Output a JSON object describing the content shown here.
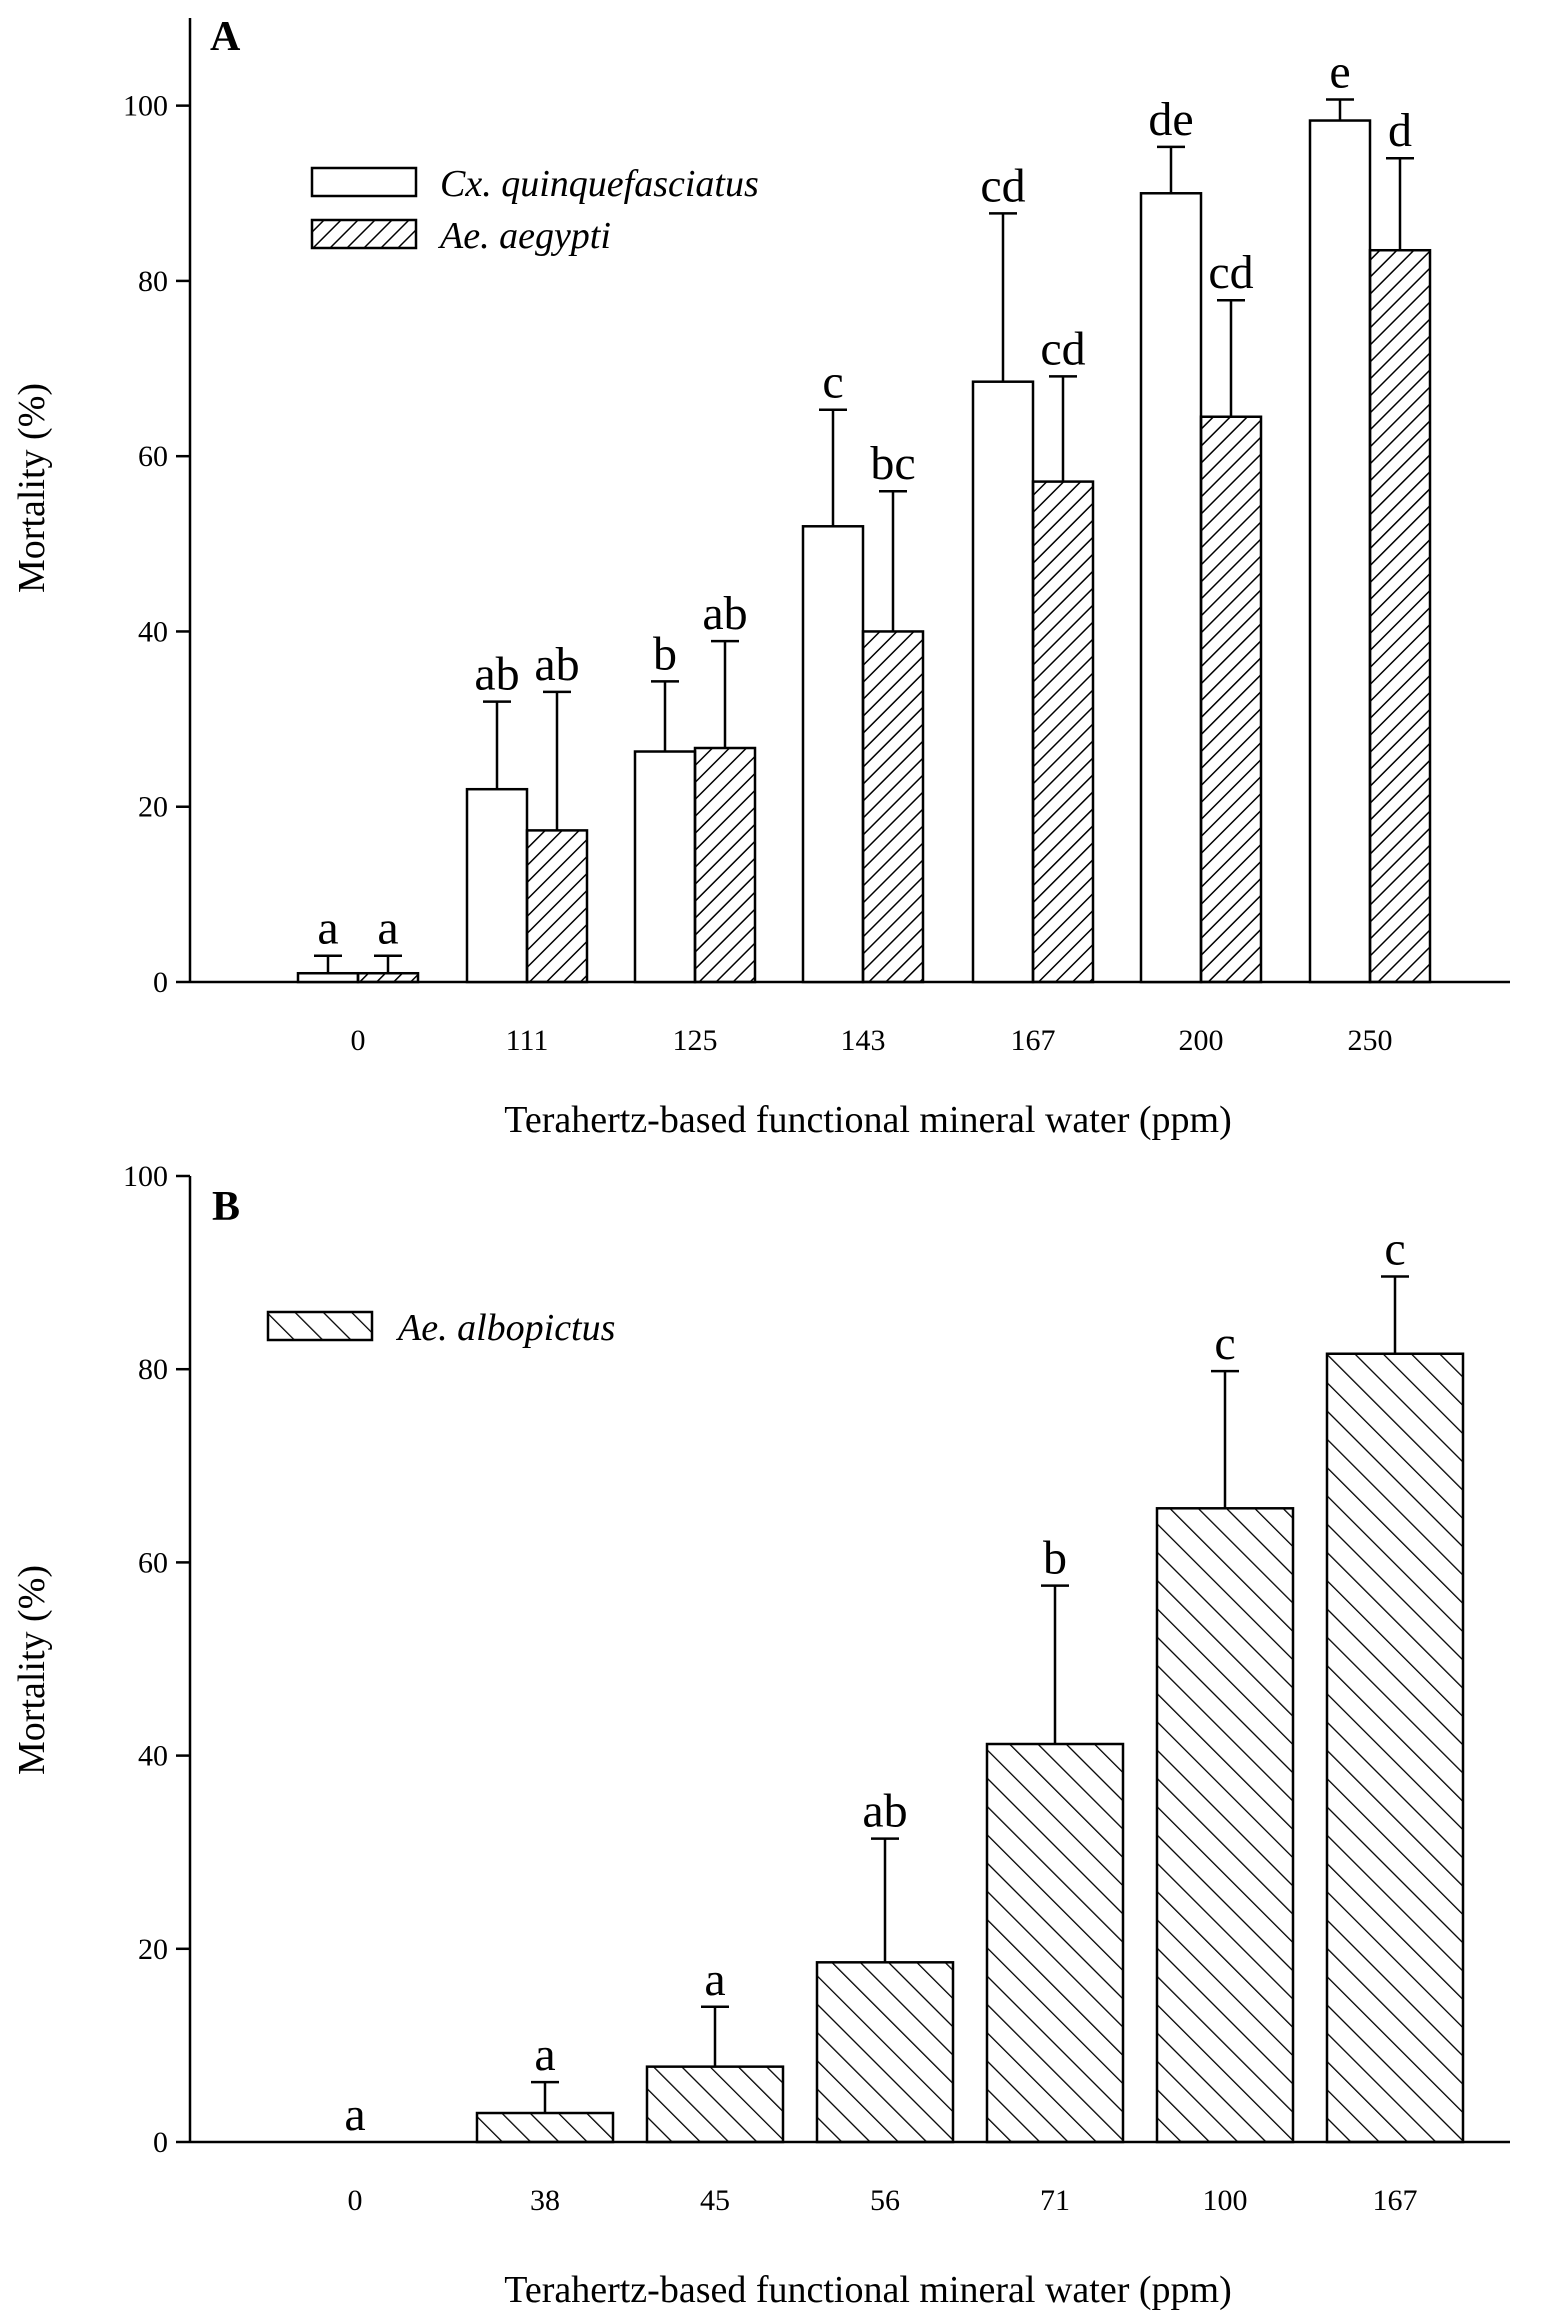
{
  "chart_data": [
    {
      "panel": "A",
      "type": "bar",
      "xlabel": "Terahertz-based functional mineral water (ppm)",
      "ylabel": "Mortality (%)",
      "ylim": [
        0,
        110
      ],
      "yticks": [
        0,
        20,
        40,
        60,
        80,
        100
      ],
      "categories": [
        "0",
        "111",
        "125",
        "143",
        "167",
        "200",
        "250"
      ],
      "legend_position": "top-left",
      "series": [
        {
          "name": "Cx. quinquefasciatus",
          "pattern": "open",
          "values": [
            1,
            22,
            26.3,
            52,
            68.5,
            90,
            98.3
          ],
          "errors": [
            2,
            10,
            8,
            13.3,
            19.2,
            5.3,
            2.4
          ],
          "labels": [
            "a",
            "ab",
            "b",
            "c",
            "cd",
            "de",
            "e"
          ]
        },
        {
          "name": "Ae. aegypti",
          "pattern": "hatch-forward",
          "values": [
            1,
            17.3,
            26.7,
            40,
            57.1,
            64.5,
            83.5
          ],
          "errors": [
            2,
            15.8,
            12.2,
            16,
            12,
            13.3,
            10.5
          ],
          "labels": [
            "a",
            "ab",
            "ab",
            "bc",
            "cd",
            "cd",
            "d"
          ]
        }
      ]
    },
    {
      "panel": "B",
      "type": "bar",
      "xlabel": "Terahertz-based functional mineral water (ppm)",
      "ylabel": "Mortality (%)",
      "ylim": [
        0,
        100
      ],
      "yticks": [
        0,
        20,
        40,
        60,
        80,
        100
      ],
      "categories": [
        "0",
        "38",
        "45",
        "56",
        "71",
        "100",
        "167"
      ],
      "legend_position": "top-left",
      "series": [
        {
          "name": "Ae. albopictus",
          "pattern": "hatch-back",
          "values": [
            0,
            3,
            7.8,
            18.6,
            41.2,
            65.6,
            81.6
          ],
          "errors": [
            0,
            3.2,
            6.2,
            12.8,
            16.4,
            14.2,
            8
          ],
          "labels": [
            "a",
            "a",
            "a",
            "ab",
            "b",
            "c",
            "c"
          ]
        }
      ]
    }
  ]
}
